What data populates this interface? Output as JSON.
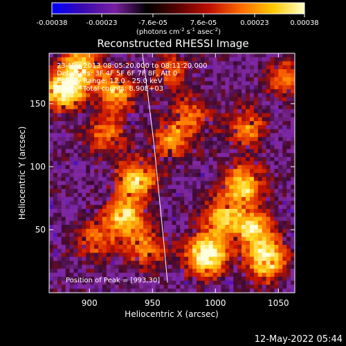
{
  "chart_data": {
    "type": "heatmap",
    "title": "Reconstructed RHESSI Image",
    "xlabel": "Heliocentric X (arcsec)",
    "ylabel": "Heliocentric Y (arcsec)",
    "xlim": [
      868,
      1063
    ],
    "ylim": [
      0,
      190
    ],
    "xticks": [
      900,
      950,
      1000,
      1050
    ],
    "yticks": [
      50,
      100,
      150
    ],
    "colorbar": {
      "label_main": "(photons cm",
      "label_exp1": "-2",
      "label_mid": " s",
      "label_exp2": "-1",
      "label_end": " asec",
      "label_exp3": "-2",
      "label_close": ")",
      "ticks": [
        "-0.00038",
        "-0.00023",
        "-7.6e-05",
        "7.6e-05",
        "0.00023",
        "0.00038"
      ],
      "range": [
        -0.00038,
        0.00038
      ],
      "colors": [
        "#0000ff",
        "#3a0ab0",
        "#7a1fa0",
        "#000000",
        "#5a0000",
        "#c01000",
        "#ff6a00",
        "#ffc800",
        "#ffffc8"
      ]
    },
    "annotations": {
      "time": "23-Mar-2013 08:05:20.000 to 08:11:20.000",
      "detectors": "Detectors: 3F 4F 5F 6F 7F 8F, Att 0",
      "energy": "Energy Range: 12.0 - 25.0 keV",
      "clean": "Clean   Total counts: 8.90E+03",
      "peak": "Position of Peak = [993,30]"
    },
    "limb_curve": [
      [
        942,
        190
      ],
      [
        946,
        160
      ],
      [
        951,
        120
      ],
      [
        955,
        80
      ],
      [
        959,
        40
      ],
      [
        962,
        8
      ]
    ],
    "hotspots": [
      {
        "x": 880,
        "y": 160,
        "i": 0.95
      },
      {
        "x": 893,
        "y": 182,
        "i": 0.7
      },
      {
        "x": 920,
        "y": 160,
        "i": 0.65
      },
      {
        "x": 912,
        "y": 125,
        "i": 0.5
      },
      {
        "x": 937,
        "y": 90,
        "i": 0.75
      },
      {
        "x": 928,
        "y": 60,
        "i": 0.7
      },
      {
        "x": 945,
        "y": 35,
        "i": 0.55
      },
      {
        "x": 905,
        "y": 42,
        "i": 0.45
      },
      {
        "x": 965,
        "y": 120,
        "i": 0.5
      },
      {
        "x": 980,
        "y": 140,
        "i": 0.45
      },
      {
        "x": 993,
        "y": 30,
        "i": 1.0
      },
      {
        "x": 1005,
        "y": 60,
        "i": 0.6
      },
      {
        "x": 1022,
        "y": 85,
        "i": 0.75
      },
      {
        "x": 1030,
        "y": 50,
        "i": 0.7
      },
      {
        "x": 1040,
        "y": 25,
        "i": 0.8
      },
      {
        "x": 1025,
        "y": 130,
        "i": 0.5
      },
      {
        "x": 1055,
        "y": 170,
        "i": 0.45
      },
      {
        "x": 965,
        "y": 175,
        "i": 0.4
      }
    ]
  },
  "footer": {
    "date": "12-May-2022 05:44"
  }
}
